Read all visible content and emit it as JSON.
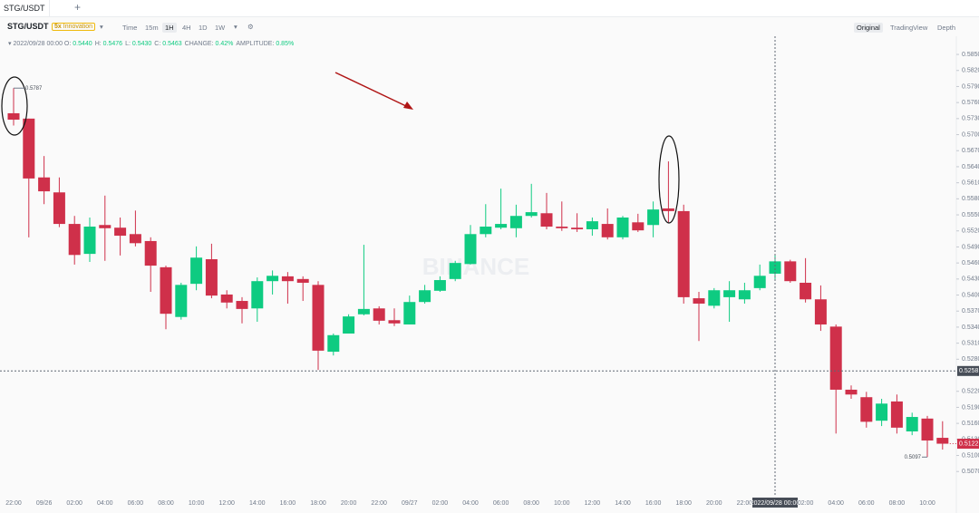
{
  "tab": "STG/USDT",
  "toolbar": {
    "symbol": "STG/USDT",
    "leverage": "5x",
    "zone": "Innovation",
    "intervals": [
      "Time",
      "15m",
      "1H",
      "4H",
      "1D",
      "1W"
    ],
    "views": [
      "Original",
      "TradingView",
      "Depth"
    ]
  },
  "info": {
    "date": "2022/09/28 00:00",
    "fields": [
      {
        "label": "O:",
        "value": "0.5440"
      },
      {
        "label": "H:",
        "value": "0.5476"
      },
      {
        "label": "L:",
        "value": "0.5430"
      },
      {
        "label": "C:",
        "value": "0.5463"
      },
      {
        "label": "CHANGE:",
        "value": "0.42%"
      },
      {
        "label": "AMPLITUDE:",
        "value": "0.85%"
      }
    ]
  },
  "chart_data": {
    "type": "candlestick",
    "watermark": "BINANCE",
    "up_color": "#0ecb81",
    "down_color": "#cf304a",
    "categories": [
      "22:00",
      null,
      "09/26",
      null,
      "02:00",
      null,
      "04:00",
      null,
      "06:00",
      null,
      "08:00",
      null,
      "10:00",
      null,
      "12:00",
      null,
      "14:00",
      null,
      "16:00",
      null,
      "18:00",
      null,
      "20:00",
      null,
      "22:00",
      null,
      "09/27",
      null,
      "02:00",
      null,
      "04:00",
      null,
      "06:00",
      null,
      "08:00",
      null,
      "10:00",
      null,
      "12:00",
      null,
      "14:00",
      null,
      "16:00",
      null,
      "18:00",
      null,
      "20:00",
      null,
      "22:00",
      null,
      "2022/09/28 00:00",
      null,
      "02:00",
      null,
      "04:00",
      null,
      "06:00",
      null,
      "08:00",
      null,
      "10:00",
      null
    ],
    "open": [
      0.574,
      0.573,
      0.562,
      0.5592,
      0.5533,
      0.5477,
      0.5531,
      0.5526,
      0.5514,
      0.5501,
      0.5452,
      0.5359,
      0.5421,
      0.5467,
      0.5401,
      0.5389,
      0.5375,
      0.5426,
      0.5435,
      0.543,
      0.5419,
      0.5294,
      0.5328,
      0.5364,
      0.5375,
      0.5353,
      0.5345,
      0.5387,
      0.5408,
      0.543,
      0.5458,
      0.5514,
      0.5526,
      0.5525,
      0.5548,
      0.5553,
      0.5528,
      0.5526,
      0.5523,
      0.5533,
      0.5508,
      0.5536,
      0.5531,
      0.5562,
      0.5557,
      0.5394,
      0.538,
      0.5396,
      0.5392,
      0.5413,
      0.544,
      0.5463,
      0.5423,
      0.5392,
      0.5341,
      0.5223,
      0.5209,
      0.5165,
      0.5201,
      0.5145,
      0.5169,
      0.5133
    ],
    "high": [
      0.5787,
      0.573,
      0.566,
      0.562,
      0.5548,
      0.5545,
      0.5586,
      0.5545,
      0.5558,
      0.5508,
      0.5455,
      0.5423,
      0.5491,
      0.5496,
      0.5409,
      0.5396,
      0.5433,
      0.5446,
      0.5443,
      0.5435,
      0.5426,
      0.5328,
      0.5364,
      0.5494,
      0.5379,
      0.5375,
      0.5399,
      0.5419,
      0.5435,
      0.5464,
      0.5531,
      0.557,
      0.5599,
      0.5569,
      0.5608,
      0.5591,
      0.5575,
      0.5553,
      0.5545,
      0.5562,
      0.5548,
      0.5552,
      0.5575,
      0.565,
      0.5569,
      0.5406,
      0.5413,
      0.5426,
      0.5423,
      0.5457,
      0.5476,
      0.5466,
      0.5469,
      0.5418,
      0.5345,
      0.5231,
      0.5219,
      0.5206,
      0.5214,
      0.518,
      0.5174,
      0.5164
    ],
    "low": [
      0.5717,
      0.5508,
      0.557,
      0.5527,
      0.5457,
      0.5462,
      0.5464,
      0.5474,
      0.5491,
      0.5406,
      0.5336,
      0.5354,
      0.5409,
      0.5394,
      0.5375,
      0.5347,
      0.535,
      0.5401,
      0.5384,
      0.5389,
      0.526,
      0.5287,
      0.5328,
      0.5362,
      0.5345,
      0.5342,
      0.5345,
      0.5384,
      0.5406,
      0.5426,
      0.5457,
      0.5508,
      0.5523,
      0.5508,
      0.5545,
      0.5523,
      0.552,
      0.5518,
      0.5511,
      0.5504,
      0.5504,
      0.5518,
      0.5508,
      0.5536,
      0.5384,
      0.5314,
      0.5375,
      0.535,
      0.5384,
      0.5409,
      0.543,
      0.5423,
      0.5386,
      0.5333,
      0.5141,
      0.5206,
      0.5152,
      0.5155,
      0.5141,
      0.5138,
      0.5097,
      0.5111
    ],
    "close": [
      0.5728,
      0.5618,
      0.5594,
      0.5533,
      0.5475,
      0.5528,
      0.5525,
      0.5511,
      0.5497,
      0.5455,
      0.5365,
      0.5419,
      0.547,
      0.5399,
      0.5386,
      0.5374,
      0.5426,
      0.5436,
      0.5426,
      0.5423,
      0.5296,
      0.5325,
      0.536,
      0.5374,
      0.5352,
      0.5347,
      0.5387,
      0.5409,
      0.5428,
      0.546,
      0.5514,
      0.5528,
      0.5533,
      0.5548,
      0.5555,
      0.5528,
      0.5525,
      0.5523,
      0.5538,
      0.5508,
      0.5545,
      0.5521,
      0.556,
      0.5557,
      0.5396,
      0.5384,
      0.5409,
      0.5409,
      0.5409,
      0.5436,
      0.5463,
      0.5426,
      0.5392,
      0.5345,
      0.5223,
      0.5214,
      0.5163,
      0.5197,
      0.5152,
      0.5172,
      0.5128,
      0.5122
    ],
    "ylim": [
      0.5028,
      0.5884
    ],
    "yticks": [
      {
        "value": 0.585,
        "label": "0.5850"
      },
      {
        "value": 0.582,
        "label": "0.5820"
      },
      {
        "value": 0.579,
        "label": "0.5790"
      },
      {
        "value": 0.576,
        "label": "0.5760"
      },
      {
        "value": 0.573,
        "label": "0.5730"
      },
      {
        "value": 0.57,
        "label": "0.5700"
      },
      {
        "value": 0.567,
        "label": "0.5670"
      },
      {
        "value": 0.564,
        "label": "0.5640"
      },
      {
        "value": 0.561,
        "label": "0.5610"
      },
      {
        "value": 0.558,
        "label": "0.5580"
      },
      {
        "value": 0.555,
        "label": "0.5550"
      },
      {
        "value": 0.552,
        "label": "0.5520"
      },
      {
        "value": 0.549,
        "label": "0.5490"
      },
      {
        "value": 0.546,
        "label": "0.5460"
      },
      {
        "value": 0.543,
        "label": "0.5430"
      },
      {
        "value": 0.54,
        "label": "0.5400"
      },
      {
        "value": 0.537,
        "label": "0.5370"
      },
      {
        "value": 0.534,
        "label": "0.5340"
      },
      {
        "value": 0.531,
        "label": "0.5310"
      },
      {
        "value": 0.528,
        "label": "0.5280"
      },
      {
        "value": 0.522,
        "label": "0.5220"
      },
      {
        "value": 0.519,
        "label": "0.5190"
      },
      {
        "value": 0.516,
        "label": "0.5160"
      },
      {
        "value": 0.513,
        "label": "0.5130"
      },
      {
        "value": 0.51,
        "label": "0.5100"
      },
      {
        "value": 0.507,
        "label": "0.5070"
      }
    ],
    "crosshair_price": 0.5258,
    "grid": false
  }
}
